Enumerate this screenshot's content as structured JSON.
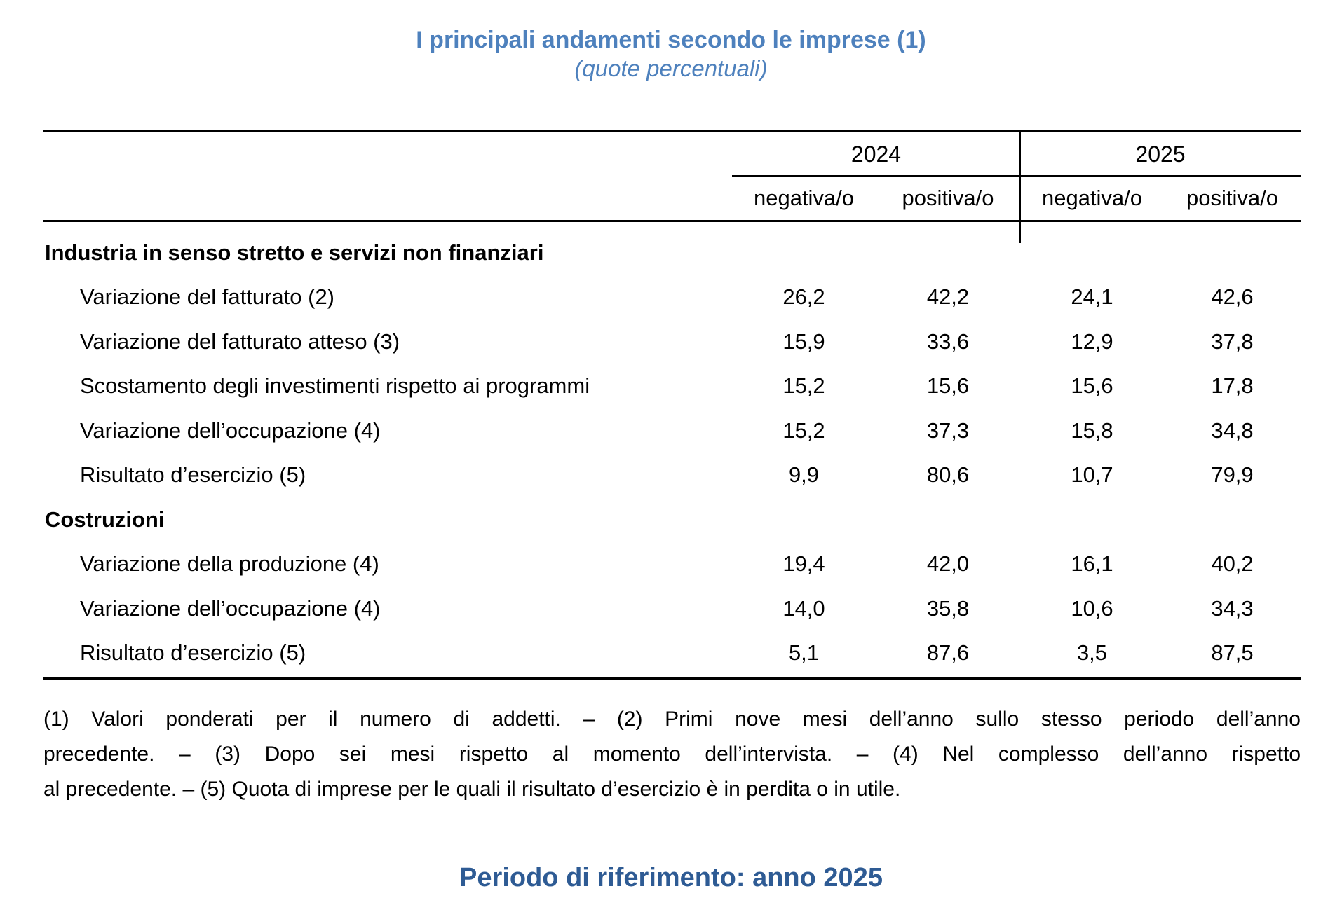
{
  "page": {
    "title": "I principali andamenti secondo le imprese (1)",
    "subtitle": "(quote percentuali)",
    "footer": "Periodo di riferimento: anno 2025",
    "colors": {
      "title_blue": "#4E81BD",
      "footer_blue": "#2E5B94"
    }
  },
  "table": {
    "year_headers": [
      "2024",
      "2025"
    ],
    "col_headers": [
      "negativa/o",
      "positiva/o",
      "negativa/o",
      "positiva/o"
    ],
    "sections": [
      {
        "label": "Industria in senso stretto e servizi non finanziari",
        "rows": [
          {
            "label": "Variazione del fatturato (2)",
            "values": [
              "26,2",
              "42,2",
              "24,1",
              "42,6"
            ]
          },
          {
            "label": "Variazione del fatturato atteso (3)",
            "values": [
              "15,9",
              "33,6",
              "12,9",
              "37,8"
            ]
          },
          {
            "label": "Scostamento degli investimenti rispetto ai programmi",
            "values": [
              "15,2",
              "15,6",
              "15,6",
              "17,8"
            ]
          },
          {
            "label": "Variazione dell’occupazione (4)",
            "values": [
              "15,2",
              "37,3",
              "15,8",
              "34,8"
            ]
          },
          {
            "label": "Risultato d’esercizio (5)",
            "values": [
              "9,9",
              "80,6",
              "10,7",
              "79,9"
            ]
          }
        ]
      },
      {
        "label": "Costruzioni",
        "rows": [
          {
            "label": "Variazione della produzione (4)",
            "values": [
              "19,4",
              "42,0",
              "16,1",
              "40,2"
            ]
          },
          {
            "label": "Variazione dell’occupazione (4)",
            "values": [
              "14,0",
              "35,8",
              "10,6",
              "34,3"
            ]
          },
          {
            "label": "Risultato d’esercizio (5)",
            "values": [
              "5,1",
              "87,6",
              "3,5",
              "87,5"
            ]
          }
        ]
      }
    ]
  },
  "footnote": {
    "lines": [
      "(1) Valori ponderati per il numero di addetti. – (2) Primi nove mesi dell’anno sullo stesso periodo dell’anno",
      "precedente. – (3) Dopo sei mesi rispetto al momento dell’intervista. – (4) Nel complesso dell’anno rispetto",
      "al precedente. – (5) Quota di imprese per le quali il risultato d’esercizio è in perdita o in utile."
    ]
  }
}
